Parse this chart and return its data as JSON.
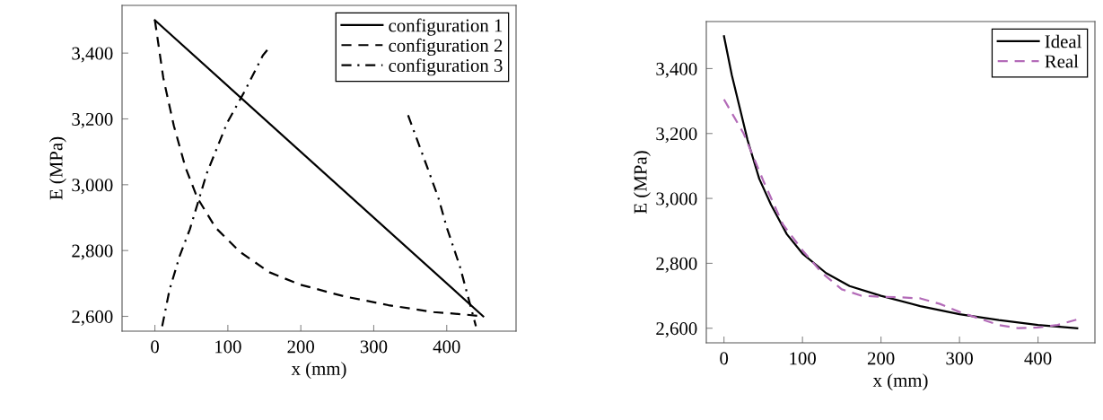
{
  "chart_data": [
    {
      "type": "line",
      "xlabel": "x (mm)",
      "ylabel": "E (MPa)",
      "xlim": [
        -45,
        495
      ],
      "ylim": [
        2555,
        3545
      ],
      "xticks": [
        0,
        100,
        200,
        300,
        400
      ],
      "yticks": [
        {
          "value": 2600,
          "label": "2,600"
        },
        {
          "value": 2800,
          "label": "2,800"
        },
        {
          "value": 3000,
          "label": "3,000"
        },
        {
          "value": 3200,
          "label": "3,200"
        },
        {
          "value": 3400,
          "label": "3,400"
        }
      ],
      "legend": "top right",
      "series": [
        {
          "name": "configuration 1",
          "color": "#000000",
          "line_style": "solid",
          "x": [
            0,
            450
          ],
          "values": [
            3500,
            2600
          ]
        },
        {
          "name": "configuration 2",
          "color": "#000000",
          "line_style": "dashed",
          "x": [
            0,
            11.5,
            26,
            42,
            58,
            83,
            116,
            157,
            198,
            259,
            320,
            382,
            427,
            450
          ],
          "values": [
            3500,
            3325,
            3179,
            3052,
            2961,
            2870,
            2797,
            2734,
            2697,
            2661,
            2634,
            2613,
            2605,
            2600
          ]
        },
        {
          "name": "configuration 3",
          "color": "#000000",
          "line_style": "dashdot",
          "x": [
            10,
            20,
            34,
            48,
            71,
            99,
            124,
            148,
            158,
            225,
            347,
            375,
            389,
            400,
            418,
            440
          ],
          "values": [
            2570,
            2680,
            2784,
            2865,
            3034,
            3188,
            3288,
            3393,
            3420,
            null,
            3211,
            3043,
            2957,
            2870,
            2752,
            2570
          ]
        }
      ]
    },
    {
      "type": "line",
      "xlabel": "x (mm)",
      "ylabel": "E (MPa)",
      "xlim": [
        -22.5,
        472.5
      ],
      "ylim": [
        2555,
        3545
      ],
      "xticks": [
        0,
        100,
        200,
        300,
        400
      ],
      "yticks": [
        {
          "value": 2600,
          "label": "2,600"
        },
        {
          "value": 2800,
          "label": "2,800"
        },
        {
          "value": 3000,
          "label": "3,000"
        },
        {
          "value": 3200,
          "label": "3,200"
        },
        {
          "value": 3400,
          "label": "3,400"
        }
      ],
      "legend": "top right",
      "series": [
        {
          "name": "Ideal",
          "color": "#000000",
          "line_style": "solid",
          "x": [
            0,
            10,
            20,
            30,
            45,
            60,
            80,
            100,
            130,
            160,
            200,
            250,
            300,
            350,
            400,
            450
          ],
          "values": [
            3500,
            3380,
            3280,
            3180,
            3060,
            2980,
            2890,
            2830,
            2770,
            2730,
            2700,
            2668,
            2643,
            2625,
            2610,
            2600
          ]
        },
        {
          "name": "Real",
          "color": "#b36bb8",
          "line_style": "dashed",
          "x": [
            0,
            25,
            50,
            75,
            100,
            125,
            150,
            175,
            200,
            225,
            250,
            275,
            300,
            325,
            350,
            375,
            400,
            425,
            450
          ],
          "values": [
            3305,
            3200,
            3055,
            2920,
            2840,
            2770,
            2720,
            2700,
            2697,
            2695,
            2692,
            2675,
            2650,
            2630,
            2610,
            2600,
            2602,
            2610,
            2627
          ]
        }
      ]
    }
  ]
}
